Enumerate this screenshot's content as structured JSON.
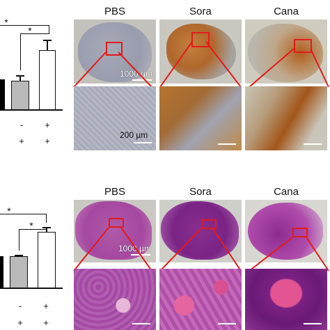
{
  "top_panel": {
    "chart_data": {
      "type": "bar",
      "categories": [
        "",
        "",
        ""
      ],
      "values": [
        1.0,
        1.0,
        1.8
      ],
      "title": "",
      "xlabel": "",
      "ylabel": "",
      "significance": [
        "*",
        "*"
      ],
      "row1_signs": [
        "-",
        "+"
      ],
      "row2_signs": [
        "+",
        "+"
      ]
    },
    "columns": [
      "PBS",
      "Sora",
      "Cana"
    ],
    "scale_large": "1000 µm",
    "scale_small": "200 µm",
    "colors": {
      "background": "#c9c8c2",
      "stain": "#b8651e",
      "tissue": "#9ea3b4"
    }
  },
  "bottom_panel": {
    "chart_data": {
      "type": "bar",
      "categories": [
        "",
        "",
        ""
      ],
      "values": [
        1.0,
        1.0,
        1.55
      ],
      "title": "",
      "xlabel": "",
      "ylabel": "",
      "significance": [
        "*",
        "*"
      ],
      "row1_signs": [
        "-",
        "+"
      ],
      "row2_signs": [
        "+",
        "+"
      ]
    },
    "columns": [
      "PBS",
      "Sora",
      "Cana"
    ],
    "scale_large": "1000 µm",
    "colors": {
      "tissue": "#a8389b",
      "background": "#c9c8c2",
      "highlight": "#e24a8e"
    }
  }
}
